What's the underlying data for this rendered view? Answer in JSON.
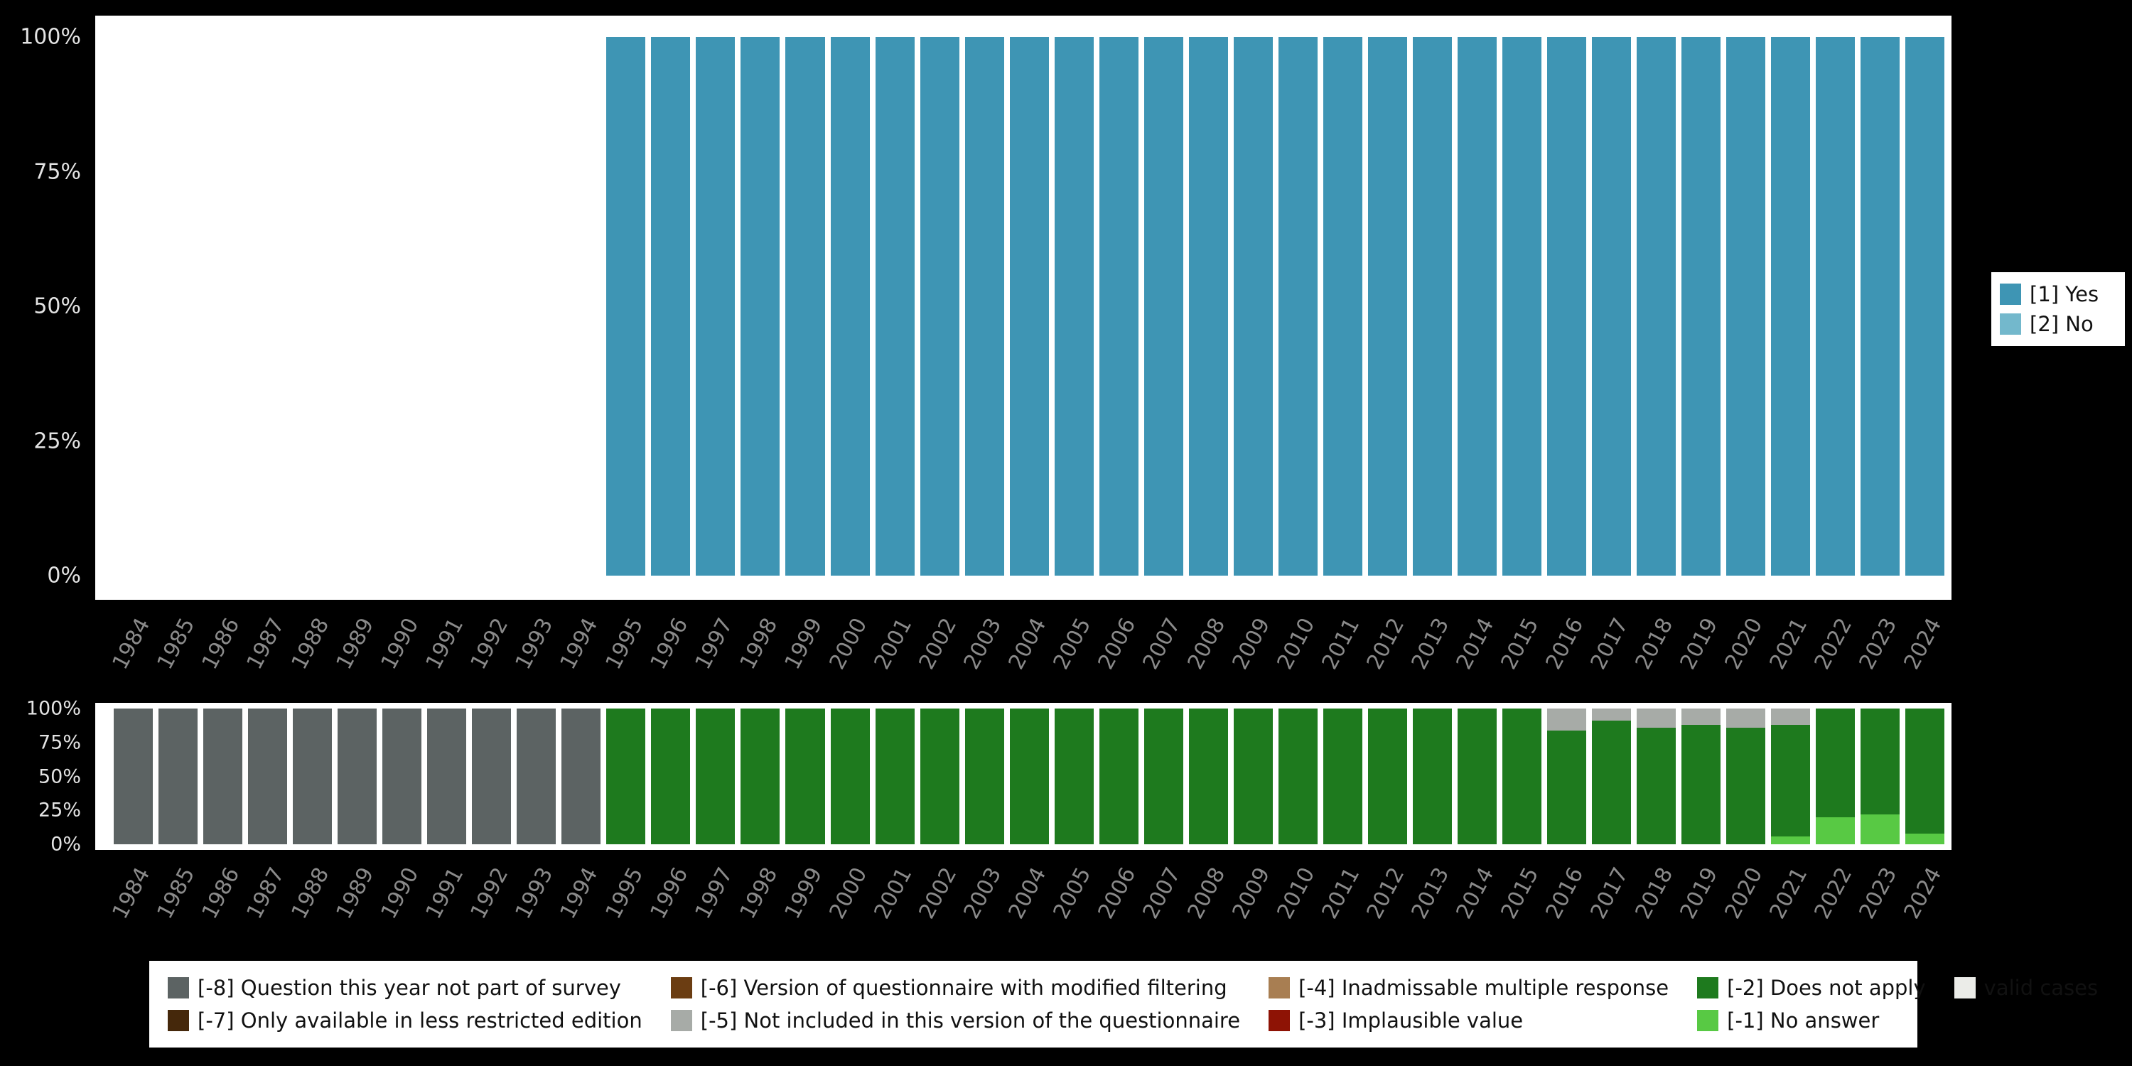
{
  "background": "#000000",
  "panel_color": "#ffffff",
  "axis": {
    "years": [
      "1984",
      "1985",
      "1986",
      "1987",
      "1988",
      "1989",
      "1990",
      "1991",
      "1992",
      "1993",
      "1994",
      "1995",
      "1996",
      "1997",
      "1998",
      "1999",
      "2000",
      "2001",
      "2002",
      "2003",
      "2004",
      "2005",
      "2006",
      "2007",
      "2008",
      "2009",
      "2010",
      "2011",
      "2012",
      "2013",
      "2014",
      "2015",
      "2016",
      "2017",
      "2018",
      "2019",
      "2020",
      "2021",
      "2022",
      "2023",
      "2024"
    ],
    "ytick_labels": [
      "0%",
      "25%",
      "50%",
      "75%",
      "100%"
    ],
    "year_label_color": "#8a8a8a",
    "ytick_label_color": "#e3e3e3"
  },
  "top_legend": {
    "items": [
      {
        "label": "[1] Yes",
        "color": "#3e95b4"
      },
      {
        "label": "[2] No",
        "color": "#73b8cc"
      }
    ]
  },
  "bottom_legend": {
    "items": [
      {
        "label": "[-8] Question this year not part of survey",
        "color": "#5c6363"
      },
      {
        "label": "[-7] Only available in less restricted edition",
        "color": "#45280b"
      },
      {
        "label": "[-6] Version of questionnaire with modified filtering",
        "color": "#6b3d12"
      },
      {
        "label": "[-5] Not included in this version of the questionnaire",
        "color": "#a7aba7"
      },
      {
        "label": "[-4] Inadmissable multiple response",
        "color": "#a87e52"
      },
      {
        "label": "[-3] Implausible value",
        "color": "#8e1305"
      },
      {
        "label": "[-2] Does not apply",
        "color": "#1e7a1e"
      },
      {
        "label": "[-1] No answer",
        "color": "#58c944"
      },
      {
        "label": "valid cases",
        "color": "#ebece8"
      }
    ]
  },
  "chart_data": [
    {
      "type": "bar",
      "stacked": true,
      "name": "response-distribution",
      "title": "",
      "xlabel": "",
      "ylabel": "",
      "ylim": [
        0,
        100
      ],
      "yticks": [
        "0%",
        "25%",
        "50%",
        "75%",
        "100%"
      ],
      "legend_position": "right",
      "x": [
        "1984",
        "1985",
        "1986",
        "1987",
        "1988",
        "1989",
        "1990",
        "1991",
        "1992",
        "1993",
        "1994",
        "1995",
        "1996",
        "1997",
        "1998",
        "1999",
        "2000",
        "2001",
        "2002",
        "2003",
        "2004",
        "2005",
        "2006",
        "2007",
        "2008",
        "2009",
        "2010",
        "2011",
        "2012",
        "2013",
        "2014",
        "2015",
        "2016",
        "2017",
        "2018",
        "2019",
        "2020",
        "2021",
        "2022",
        "2023",
        "2024"
      ],
      "series": [
        {
          "name": "[1] Yes",
          "color": "#3e95b4",
          "values": [
            0,
            0,
            0,
            0,
            0,
            0,
            0,
            0,
            0,
            0,
            0,
            100,
            100,
            100,
            100,
            100,
            100,
            100,
            100,
            100,
            100,
            100,
            100,
            100,
            100,
            100,
            100,
            100,
            100,
            100,
            100,
            100,
            100,
            100,
            100,
            100,
            100,
            100,
            100,
            100,
            100
          ]
        },
        {
          "name": "[2] No",
          "color": "#73b8cc",
          "values": [
            0,
            0,
            0,
            0,
            0,
            0,
            0,
            0,
            0,
            0,
            0,
            0,
            0,
            0,
            0,
            0,
            0,
            0,
            0,
            0,
            0,
            0,
            0,
            0,
            0,
            0,
            0,
            0,
            0,
            0,
            0,
            0,
            0,
            0,
            0,
            0,
            0,
            0,
            0,
            0,
            0
          ]
        }
      ]
    },
    {
      "type": "bar",
      "stacked": true,
      "name": "missing-values-distribution",
      "title": "",
      "xlabel": "",
      "ylabel": "",
      "ylim": [
        0,
        100
      ],
      "yticks": [
        "0%",
        "25%",
        "50%",
        "75%",
        "100%"
      ],
      "legend_position": "bottom",
      "x": [
        "1984",
        "1985",
        "1986",
        "1987",
        "1988",
        "1989",
        "1990",
        "1991",
        "1992",
        "1993",
        "1994",
        "1995",
        "1996",
        "1997",
        "1998",
        "1999",
        "2000",
        "2001",
        "2002",
        "2003",
        "2004",
        "2005",
        "2006",
        "2007",
        "2008",
        "2009",
        "2010",
        "2011",
        "2012",
        "2013",
        "2014",
        "2015",
        "2016",
        "2017",
        "2018",
        "2019",
        "2020",
        "2021",
        "2022",
        "2023",
        "2024"
      ],
      "series": [
        {
          "name": "[-1] No answer",
          "color": "#58c944",
          "values": [
            0,
            0,
            0,
            0,
            0,
            0,
            0,
            0,
            0,
            0,
            0,
            0,
            0,
            0,
            0,
            0,
            0,
            0,
            0,
            0,
            0,
            0,
            0,
            0,
            0,
            0,
            0,
            0,
            0,
            0,
            0,
            0,
            0,
            0,
            0,
            0,
            0,
            6,
            20,
            22,
            8
          ]
        },
        {
          "name": "[-2] Does not apply",
          "color": "#1e7a1e",
          "values": [
            0,
            0,
            0,
            0,
            0,
            0,
            0,
            0,
            0,
            0,
            0,
            100,
            100,
            100,
            100,
            100,
            100,
            100,
            100,
            100,
            100,
            100,
            100,
            100,
            100,
            100,
            100,
            100,
            100,
            100,
            100,
            100,
            84,
            91,
            86,
            88,
            86,
            82,
            80,
            78,
            92
          ]
        },
        {
          "name": "[-5] Not included in this version of the questionnaire",
          "color": "#a7aba7",
          "values": [
            0,
            0,
            0,
            0,
            0,
            0,
            0,
            0,
            0,
            0,
            0,
            0,
            0,
            0,
            0,
            0,
            0,
            0,
            0,
            0,
            0,
            0,
            0,
            0,
            0,
            0,
            0,
            0,
            0,
            0,
            0,
            0,
            16,
            9,
            14,
            12,
            14,
            12,
            0,
            0,
            0
          ]
        },
        {
          "name": "[-8] Question this year not part of survey",
          "color": "#5c6363",
          "values": [
            100,
            100,
            100,
            100,
            100,
            100,
            100,
            100,
            100,
            100,
            100,
            0,
            0,
            0,
            0,
            0,
            0,
            0,
            0,
            0,
            0,
            0,
            0,
            0,
            0,
            0,
            0,
            0,
            0,
            0,
            0,
            0,
            0,
            0,
            0,
            0,
            0,
            0,
            0,
            0,
            0
          ]
        }
      ]
    }
  ]
}
